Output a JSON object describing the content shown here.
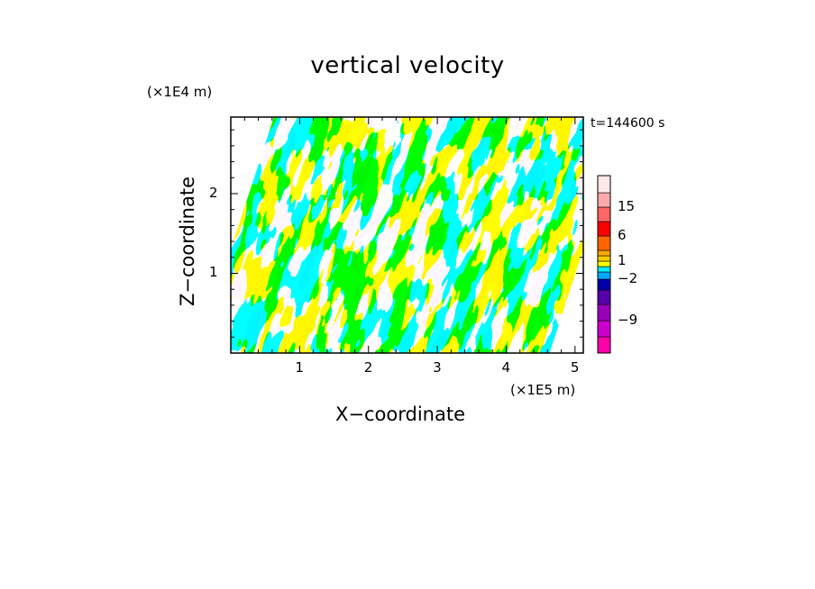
{
  "chart_data": {
    "type": "heatmap",
    "title": "vertical velocity",
    "xlabel": "X−coordinate",
    "ylabel": "Z−coordinate",
    "x_unit_label": "(×1E5 m)",
    "y_unit_label": "(×1E4 m)",
    "time_label": "t=144600 s",
    "xlim": [
      0,
      5.12
    ],
    "ylim": [
      0,
      2.96
    ],
    "x_ticks": [
      "1",
      "2",
      "3",
      "4",
      "5"
    ],
    "y_ticks": [
      "1",
      "2"
    ],
    "field_colors": {
      "positive": "#ffff00",
      "negative": "#00eeff"
    },
    "colorbar": {
      "tick_labels": [
        "15",
        "6",
        "1",
        "−2",
        "−9"
      ],
      "colors_bottom_to_top": [
        "#ff00aa",
        "#cc00cc",
        "#9900bb",
        "#5500aa",
        "#0000aa",
        "#00aaff",
        "#00eeff",
        "#ffff00",
        "#ffcc00",
        "#ffaa00",
        "#ff6600",
        "#ff0000",
        "#ff6666",
        "#ffaaaa",
        "#ffe8e8"
      ]
    }
  }
}
